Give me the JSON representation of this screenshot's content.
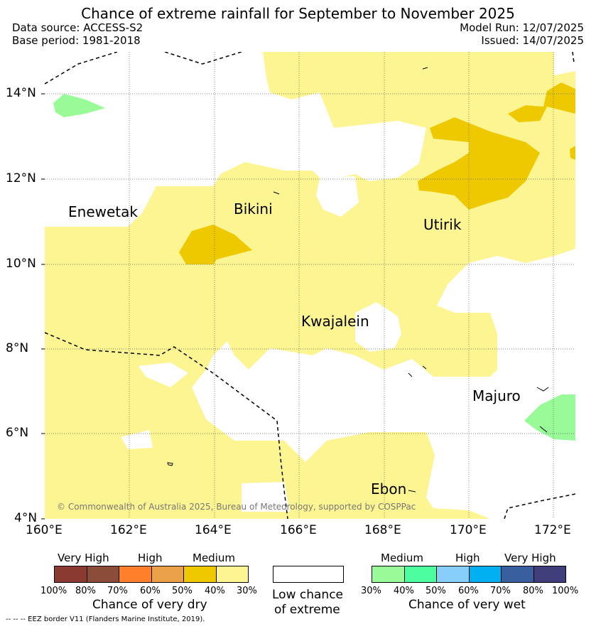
{
  "header": {
    "title": "Chance of extreme rainfall for September to November 2025",
    "data_source": "Data source: ACCESS-S2",
    "base_period": "Base period: 1981-2018",
    "model_run": "Model Run: 12/07/2025",
    "issued": "Issued: 14/07/2025"
  },
  "map": {
    "lat_ticks": [
      "14°N",
      "12°N",
      "10°N",
      "8°N",
      "6°N",
      "4°N"
    ],
    "lon_ticks": [
      "160°E",
      "162°E",
      "164°E",
      "166°E",
      "168°E",
      "170°E",
      "172°E"
    ],
    "places": {
      "enewetak": "Enewetak",
      "bikini": "Bikini",
      "utirik": "Utirik",
      "kwajalein": "Kwajalein",
      "majuro": "Majuro",
      "ebon": "Ebon"
    },
    "copyright": "© Commonwealth of Australia 2025, Bureau of Meteorology, supported by COSPPac"
  },
  "legend": {
    "dry": {
      "levels": [
        "Very High",
        "High",
        "Medium"
      ],
      "percents": [
        "100%",
        "80%",
        "70%",
        "60%",
        "50%",
        "40%",
        "30%"
      ],
      "label": "Chance of very dry",
      "colors": [
        "#8b3a32",
        "#8b4c3a",
        "#ff7f2a",
        "#eba04a",
        "#f0c800",
        "#fdf591"
      ]
    },
    "low": {
      "line1": "Low chance",
      "line2": "of extreme"
    },
    "wet": {
      "levels": [
        "Medium",
        "High",
        "Very High"
      ],
      "percents": [
        "30%",
        "40%",
        "50%",
        "60%",
        "70%",
        "80%",
        "100%"
      ],
      "label": "Chance of very wet",
      "colors": [
        "#98fb98",
        "#4cfea0",
        "#87cefa",
        "#00b0f0",
        "#3a5f9e",
        "#3f3e7a"
      ]
    },
    "eez_note": "-- -- -- EEZ border V11 (Flanders Marine Institute, 2019)."
  }
}
